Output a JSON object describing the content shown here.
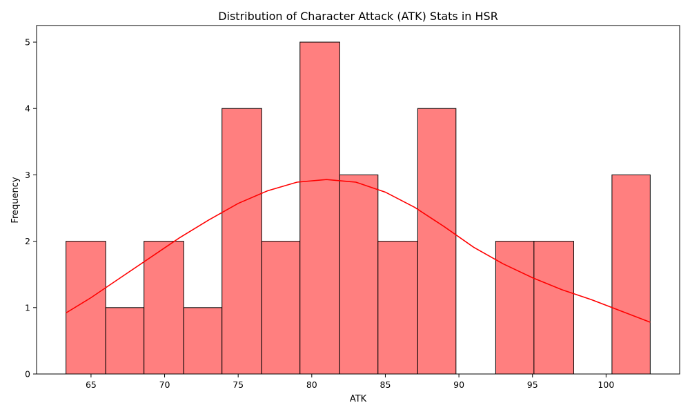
{
  "chart_data": {
    "type": "bar",
    "title": "Distribution of Character Attack (ATK) Stats in HSR",
    "xlabel": "ATK",
    "ylabel": "Frequency",
    "bin_edges": [
      63.3,
      66.0,
      68.6,
      71.3,
      73.9,
      76.6,
      79.2,
      81.9,
      84.5,
      87.2,
      89.8,
      92.5,
      95.1,
      97.8,
      100.4,
      103.0
    ],
    "values": [
      2,
      1,
      2,
      1,
      4,
      2,
      5,
      3,
      2,
      4,
      0,
      2,
      2,
      0,
      3
    ],
    "xlim": [
      61.3,
      105.0
    ],
    "ylim": [
      0,
      5.25
    ],
    "xticks": [
      65,
      70,
      75,
      80,
      85,
      90,
      95,
      100
    ],
    "yticks": [
      0,
      1,
      2,
      3,
      4,
      5
    ],
    "grid": false,
    "bar_color": "#ff7f7f",
    "bar_edge_color": "#000000",
    "kde": {
      "color": "#ff0000",
      "x": [
        63.3,
        65.0,
        67.0,
        69.0,
        71.0,
        73.0,
        75.0,
        77.0,
        79.0,
        81.0,
        83.0,
        85.0,
        87.0,
        89.0,
        91.0,
        93.0,
        95.0,
        97.0,
        99.0,
        101.0,
        103.0
      ],
      "y": [
        0.92,
        1.15,
        1.45,
        1.75,
        2.05,
        2.32,
        2.57,
        2.76,
        2.89,
        2.93,
        2.89,
        2.74,
        2.51,
        2.22,
        1.91,
        1.66,
        1.45,
        1.27,
        1.12,
        0.95,
        0.78
      ]
    }
  }
}
